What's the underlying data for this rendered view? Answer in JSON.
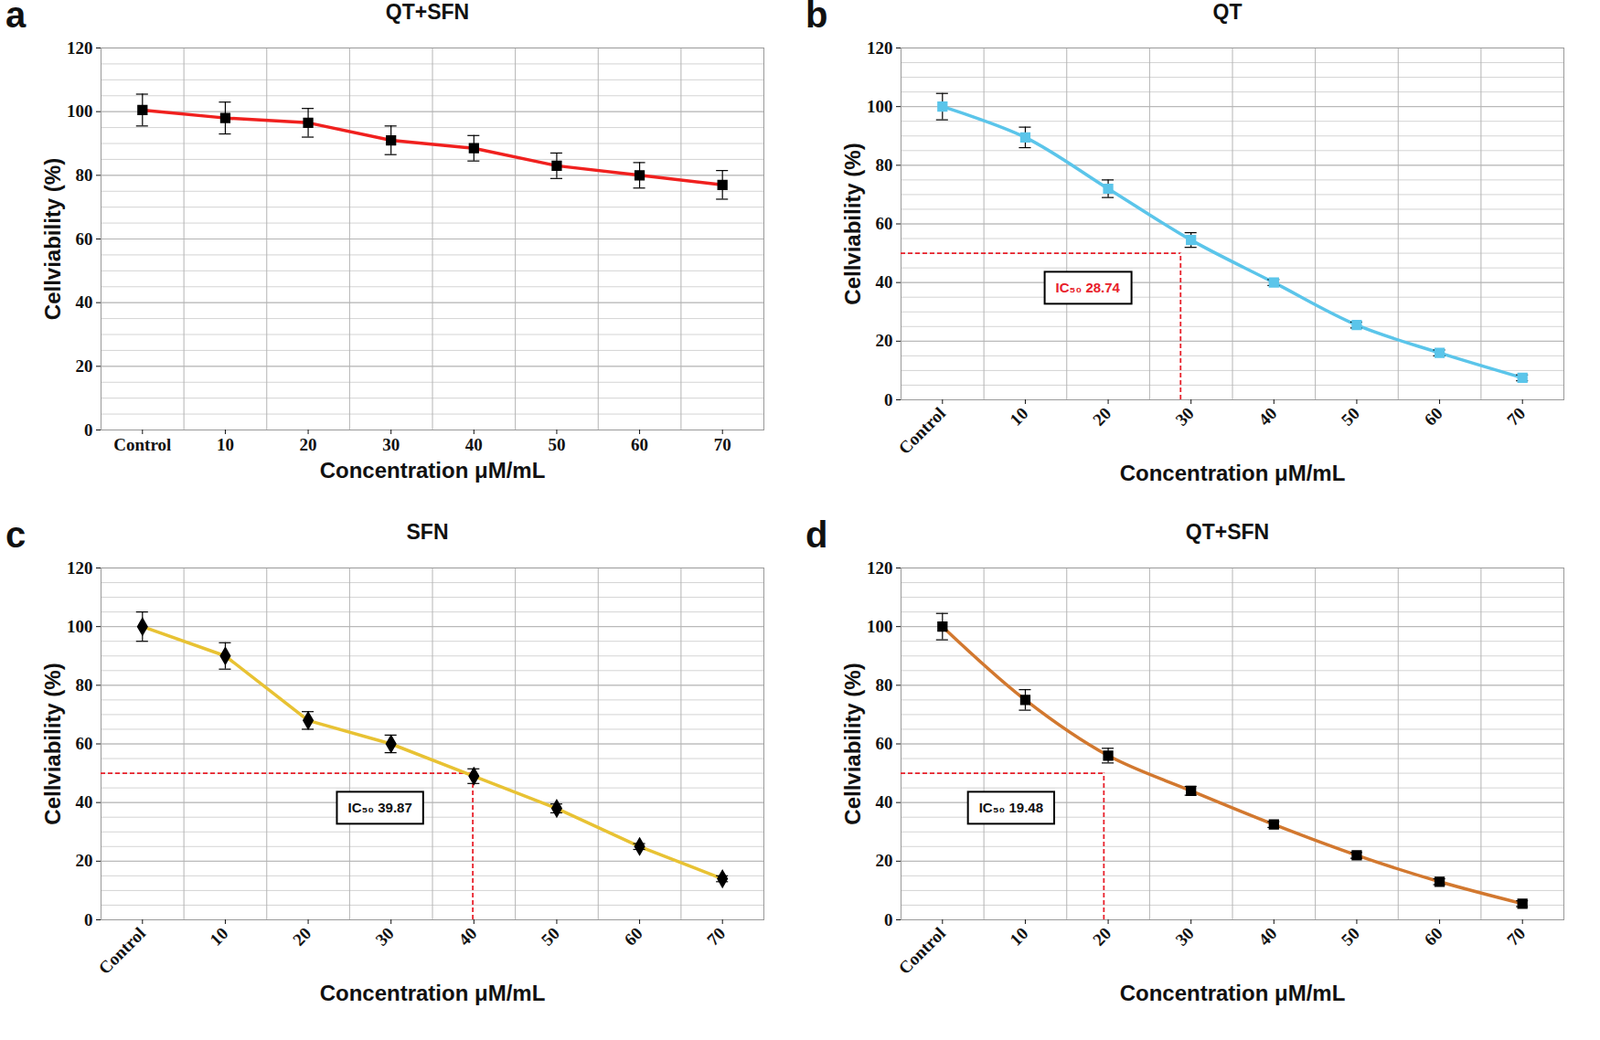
{
  "chart_data": [
    {
      "panel": "a",
      "type": "line",
      "title": "QT+SFN",
      "x_label": "Concentration μM/mL",
      "y_label": "Cellviability (%)",
      "x": [
        0,
        10,
        20,
        30,
        40,
        50,
        60,
        70
      ],
      "values": [
        100.5,
        98,
        96.5,
        91,
        88.5,
        83,
        80,
        77
      ],
      "errors": [
        5,
        5,
        4.5,
        4.5,
        4,
        4,
        4,
        4.5
      ],
      "color": "#f0201e",
      "marker": "black-square",
      "line_style": "solid",
      "xlim": [
        -5,
        75
      ],
      "xticks": [
        {
          "value": 0,
          "label": "Control"
        },
        10,
        20,
        30,
        40,
        50,
        60,
        70
      ],
      "ylim": [
        0,
        120
      ],
      "yticks": [
        0,
        20,
        40,
        60,
        80,
        100,
        120
      ],
      "grid": true
    },
    {
      "panel": "b",
      "type": "line",
      "title": "QT",
      "x_label": "Concentration μM/mL",
      "y_label": "Cellviability (%)",
      "x": [
        0,
        10,
        20,
        30,
        40,
        50,
        60,
        70
      ],
      "values": [
        100,
        89.5,
        72,
        54.5,
        40,
        25.5,
        16,
        7.5
      ],
      "errors": [
        4.5,
        3.5,
        3,
        2.5,
        1,
        1,
        1,
        1
      ],
      "color": "#5bc5ea",
      "marker": "square",
      "line_style": "smooth",
      "xlim": [
        -5,
        75
      ],
      "xticks": [
        {
          "value": 0,
          "label": "Control"
        },
        10,
        20,
        30,
        40,
        50,
        60,
        70
      ],
      "ylim": [
        0,
        120
      ],
      "yticks": [
        0,
        20,
        40,
        60,
        80,
        100,
        120
      ],
      "grid": true,
      "ic50": {
        "x": 28.74,
        "y": 50,
        "label": "IC₅₀ 28.74",
        "color": "#e8202a"
      }
    },
    {
      "panel": "c",
      "type": "line",
      "title": "SFN",
      "x_label": "Concentration μM/mL",
      "y_label": "Cellviability (%)",
      "x": [
        0,
        10,
        20,
        30,
        40,
        50,
        60,
        70
      ],
      "values": [
        100,
        90,
        68,
        60,
        49,
        38,
        25,
        14
      ],
      "errors": [
        5,
        4.5,
        3,
        3,
        2.5,
        1.5,
        1,
        1
      ],
      "color": "#e8c233",
      "marker": "black-diamond",
      "line_style": "solid",
      "xlim": [
        -5,
        75
      ],
      "xticks": [
        {
          "value": 0,
          "label": "Control"
        },
        10,
        20,
        30,
        40,
        50,
        60,
        70
      ],
      "ylim": [
        0,
        120
      ],
      "yticks": [
        0,
        20,
        40,
        60,
        80,
        100,
        120
      ],
      "grid": true,
      "ic50": {
        "x": 39.87,
        "y": 50,
        "label": "IC₅₀ 39.87",
        "color": "#111111"
      }
    },
    {
      "panel": "d",
      "type": "line",
      "title": "QT+SFN",
      "x_label": "Concentration μM/mL",
      "y_label": "Cellviability (%)",
      "x": [
        0,
        10,
        20,
        30,
        40,
        50,
        60,
        70
      ],
      "values": [
        100,
        75,
        56,
        44,
        32.5,
        22,
        13,
        5.5
      ],
      "errors": [
        4.5,
        3.5,
        2.5,
        1.5,
        1,
        1,
        1,
        1
      ],
      "color": "#d2782f",
      "marker": "black-square",
      "line_style": "smooth",
      "xlim": [
        -5,
        75
      ],
      "xticks": [
        {
          "value": 0,
          "label": "Control"
        },
        10,
        20,
        30,
        40,
        50,
        60,
        70
      ],
      "ylim": [
        0,
        120
      ],
      "yticks": [
        0,
        20,
        40,
        60,
        80,
        100,
        120
      ],
      "grid": true,
      "ic50": {
        "x": 19.48,
        "y": 50,
        "label": "IC₅₀ 19.48",
        "color": "#111111"
      }
    }
  ]
}
